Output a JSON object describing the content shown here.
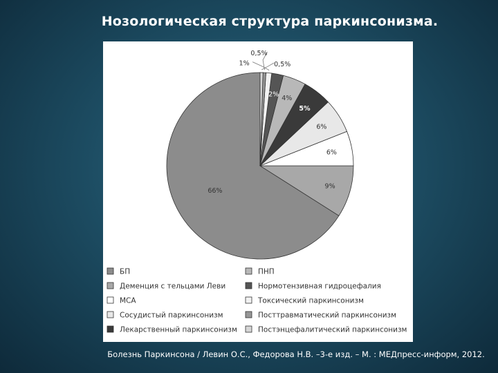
{
  "slide": {
    "title": "Нозологическая структура паркинсонизма.",
    "citation": "Болезнь Паркинсона / Левин О.С., Федорова Н.В. –3-е изд. – М. : МЕДпресс-информ, 2012."
  },
  "chart_data": {
    "type": "pie",
    "title": "",
    "legend_position": "bottom",
    "slices": [
      {
        "name": "БП",
        "value": 66,
        "label": "66%",
        "color": "#8c8c8c"
      },
      {
        "name": "Деменция с тельцами Леви",
        "value": 9,
        "label": "9%",
        "color": "#a8a8a8"
      },
      {
        "name": "МСА",
        "value": 6,
        "label": "6%",
        "color": "#ffffff"
      },
      {
        "name": "Сосудистый паркинсонизм",
        "value": 6,
        "label": "6%",
        "color": "#e8e8e8"
      },
      {
        "name": "Лекарственный паркинсонизм",
        "value": 5,
        "label": "5%",
        "color": "#3a3a3a"
      },
      {
        "name": "ПНП",
        "value": 4,
        "label": "4%",
        "color": "#b8b8b8"
      },
      {
        "name": "Нормотензивная гидроцефалия",
        "value": 2,
        "label": "2%",
        "color": "#555555"
      },
      {
        "name": "Токсический паркинсонизм",
        "value": 1,
        "label": "1%",
        "color": "#f2f2f2"
      },
      {
        "name": "Посттравматический паркинсонизм",
        "value": 0.5,
        "label": "0,5%",
        "color": "#969696"
      },
      {
        "name": "Постэнцефалитический паркинсонизм",
        "value": 0.5,
        "label": "0,5%",
        "color": "#d6d6d6"
      }
    ],
    "legend_order": [
      0,
      5,
      1,
      6,
      2,
      7,
      3,
      8,
      4,
      9
    ]
  }
}
